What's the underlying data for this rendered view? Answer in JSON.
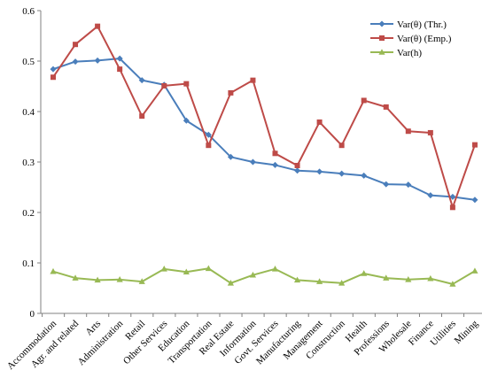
{
  "chart_data": {
    "type": "line",
    "title": "",
    "xlabel": "",
    "ylabel": "",
    "ylim": [
      0,
      0.6
    ],
    "yticks": [
      "0",
      "0.1",
      "0.2",
      "0.3",
      "0.4",
      "0.5",
      "0.6"
    ],
    "grid": false,
    "legend_position": "top-right",
    "categories": [
      "Accommodation",
      "Agr. and related",
      "Arts",
      "Administration",
      "Retail",
      "Other Services",
      "Education",
      "Transportation",
      "Real Estate",
      "Information",
      "Govt. Services",
      "Manufacturing",
      "Management",
      "Construction",
      "Health",
      "Professions",
      "Wholesale",
      "Finance",
      "Utilities",
      "Mining"
    ],
    "series": [
      {
        "name": "Var(θ) (Thr.)",
        "color": "#4a7ebb",
        "marker": "diamond",
        "values": [
          0.484,
          0.499,
          0.501,
          0.505,
          0.462,
          0.453,
          0.382,
          0.354,
          0.31,
          0.3,
          0.294,
          0.283,
          0.281,
          0.277,
          0.273,
          0.256,
          0.255,
          0.234,
          0.231,
          0.225
        ]
      },
      {
        "name": "Var(θ) (Emp.)",
        "color": "#be4b48",
        "marker": "square",
        "values": [
          0.468,
          0.533,
          0.569,
          0.484,
          0.391,
          0.451,
          0.455,
          0.333,
          0.437,
          0.462,
          0.317,
          0.293,
          0.379,
          0.333,
          0.422,
          0.409,
          0.361,
          0.358,
          0.21,
          0.334
        ]
      },
      {
        "name": "Var(h)",
        "color": "#98b954",
        "marker": "triangle",
        "values": [
          0.083,
          0.07,
          0.066,
          0.067,
          0.063,
          0.088,
          0.082,
          0.089,
          0.06,
          0.076,
          0.088,
          0.066,
          0.063,
          0.06,
          0.079,
          0.07,
          0.067,
          0.069,
          0.058,
          0.084
        ]
      }
    ]
  }
}
